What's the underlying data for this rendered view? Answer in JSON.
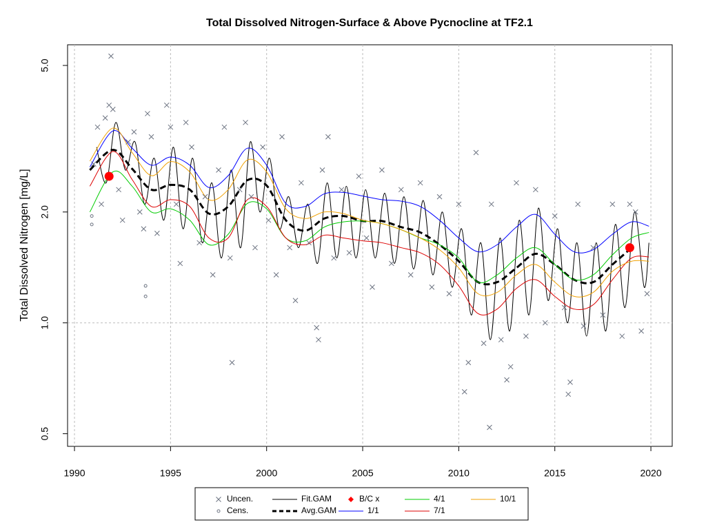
{
  "chart_data": {
    "type": "line",
    "title": "Total Dissolved Nitrogen-Surface & Above Pycnocline at TF2.1",
    "y_label": "Total Dissolved Nitrogen [mg/L]",
    "y_log": true,
    "xlim": [
      1989.64,
      2021.11
    ],
    "ylim": [
      0.462,
      5.69
    ],
    "xticks": [
      1990,
      1995,
      2000,
      2005,
      2010,
      2015,
      2020
    ],
    "yticks": [
      0.5,
      {
        "value": 1,
        "label": "1.0"
      },
      {
        "value": 2,
        "label": "2.0"
      },
      {
        "value": 5,
        "label": "5.0"
      }
    ],
    "grid_x": true,
    "ref_lines": [
      1
    ],
    "legend_position": "bottom",
    "series": [
      {
        "name": "Uncen.",
        "kind": "points",
        "marker": "x",
        "color": "#6b7280",
        "x": [
          1991.0,
          1991.2,
          1991.4,
          1991.6,
          1991.8,
          1991.9,
          1992.0,
          1992.3,
          1992.5,
          1992.8,
          1993.1,
          1993.4,
          1993.6,
          1993.8,
          1994.0,
          1994.3,
          1994.8,
          1995.0,
          1995.3,
          1995.5,
          1995.8,
          1996.1,
          1996.5,
          1996.8,
          1997.2,
          1997.5,
          1997.8,
          1998.1,
          1998.2,
          1998.6,
          1998.9,
          1999.2,
          1999.4,
          1999.8,
          2000.1,
          2000.5,
          2000.8,
          2001.2,
          2001.5,
          2001.8,
          2002.2,
          2002.6,
          2002.7,
          2002.9,
          2003.2,
          2003.5,
          2003.9,
          2004.3,
          2004.8,
          2005.2,
          2005.5,
          2006.0,
          2006.5,
          2007.0,
          2007.5,
          2008.0,
          2008.6,
          2009.0,
          2009.5,
          2010.0,
          2010.3,
          2010.5,
          2010.9,
          2011.3,
          2011.6,
          2011.7,
          2012.2,
          2012.5,
          2012.7,
          2013.0,
          2013.5,
          2014.0,
          2014.5,
          2015.0,
          2015.5,
          2015.7,
          2015.8,
          2016.2,
          2016.5,
          2017.0,
          2017.5,
          2018.0,
          2018.5,
          2018.9,
          2019.2,
          2019.5,
          2019.8
        ],
        "values": [
          2.7,
          3.4,
          2.1,
          3.6,
          3.9,
          5.3,
          3.8,
          2.3,
          1.9,
          3.1,
          3.3,
          2.0,
          1.8,
          3.7,
          3.2,
          1.75,
          3.9,
          3.4,
          2.1,
          1.45,
          3.5,
          3.0,
          1.65,
          2.2,
          1.35,
          2.6,
          3.4,
          1.5,
          0.78,
          2.3,
          3.5,
          2.2,
          1.6,
          3.0,
          1.9,
          1.35,
          3.2,
          1.6,
          1.15,
          2.4,
          1.65,
          0.97,
          0.9,
          2.6,
          3.2,
          1.5,
          2.3,
          1.55,
          2.5,
          1.7,
          1.25,
          2.6,
          1.45,
          2.3,
          1.35,
          2.4,
          1.25,
          2.2,
          1.2,
          2.1,
          0.65,
          0.78,
          2.9,
          0.88,
          0.52,
          2.1,
          0.9,
          0.7,
          0.76,
          2.4,
          0.92,
          2.3,
          1.0,
          1.95,
          1.1,
          0.64,
          0.69,
          2.1,
          0.98,
          1.6,
          1.05,
          2.1,
          0.92,
          2.1,
          2.0,
          0.95,
          1.2
        ]
      },
      {
        "name": "Cens.",
        "kind": "points",
        "marker": "o",
        "color": "#6b7280",
        "x": [
          1990.9,
          1990.9,
          1993.7,
          1993.7
        ],
        "values": [
          1.95,
          1.85,
          1.26,
          1.18
        ]
      },
      {
        "name": "Fit.GAM",
        "kind": "line",
        "color": "#000000",
        "width": 1,
        "x": [
          1991.15,
          1991.65,
          1992.15,
          1992.65,
          1993.15,
          1993.65,
          1994.15,
          1994.65,
          1995.15,
          1995.65,
          1996.15,
          1996.65,
          1997.15,
          1997.65,
          1998.15,
          1998.65,
          1999.15,
          1999.65,
          2000.15,
          2000.65,
          2001.15,
          2001.65,
          2002.15,
          2002.65,
          2003.15,
          2003.65,
          2004.15,
          2004.65,
          2005.15,
          2005.65,
          2006.15,
          2006.65,
          2007.15,
          2007.65,
          2008.15,
          2008.65,
          2009.15,
          2009.65,
          2010.15,
          2010.65,
          2011.15,
          2011.65,
          2012.15,
          2012.65,
          2013.15,
          2013.65,
          2014.15,
          2014.65,
          2015.15,
          2015.65,
          2016.15,
          2016.65,
          2017.15,
          2017.65,
          2018.15,
          2018.65,
          2019.15,
          2019.65,
          2019.9
        ],
        "values": [
          3.0,
          2.4,
          3.5,
          2.6,
          3.1,
          2.1,
          2.8,
          1.9,
          3.0,
          1.8,
          2.8,
          1.65,
          2.4,
          1.5,
          2.6,
          1.6,
          3.1,
          2.0,
          2.8,
          1.8,
          2.2,
          1.6,
          2.1,
          1.45,
          2.4,
          1.5,
          2.35,
          1.5,
          2.3,
          1.5,
          2.25,
          1.45,
          2.2,
          1.4,
          2.15,
          1.35,
          2.0,
          1.25,
          1.8,
          1.05,
          1.65,
          0.9,
          1.7,
          0.95,
          1.9,
          1.05,
          2.05,
          1.15,
          1.8,
          1.0,
          1.65,
          0.92,
          1.65,
          0.95,
          1.85,
          1.1,
          2.0,
          1.25,
          1.65
        ]
      },
      {
        "name": "Avg.GAM",
        "kind": "line",
        "dashed": true,
        "color": "#000000",
        "width": 3,
        "x": [
          1990.8,
          1992,
          1993,
          1994,
          1995,
          1996,
          1997,
          1998,
          1999,
          2000,
          2001,
          2002,
          2003,
          2004,
          2005,
          2006,
          2007,
          2008,
          2009,
          2010,
          2011,
          2012,
          2013,
          2014,
          2015,
          2016,
          2017,
          2018,
          2019,
          2019.9
        ],
        "values": [
          2.6,
          2.95,
          2.62,
          2.3,
          2.37,
          2.3,
          1.98,
          2.07,
          2.44,
          2.36,
          1.9,
          1.78,
          1.92,
          1.95,
          1.89,
          1.89,
          1.82,
          1.76,
          1.63,
          1.47,
          1.29,
          1.29,
          1.41,
          1.54,
          1.44,
          1.31,
          1.29,
          1.44,
          1.6,
          null
        ]
      },
      {
        "name": "B/C x",
        "kind": "points",
        "marker": "dot",
        "color": "#ff0000",
        "x": [
          1991.8,
          2018.9
        ],
        "values": [
          2.5,
          1.6
        ]
      },
      {
        "name": "1/1",
        "kind": "line",
        "color": "#0000ff",
        "width": 1,
        "x": [
          1990.8,
          1992,
          1993,
          1994,
          1995,
          1996,
          1997,
          1998,
          1999,
          2000,
          2001,
          2002,
          2003,
          2004,
          2005,
          2006,
          2007,
          2008,
          2009,
          2010,
          2011,
          2012,
          2013,
          2014,
          2015,
          2016,
          2017,
          2018,
          2019,
          2019.9
        ],
        "values": [
          2.65,
          3.32,
          2.98,
          2.68,
          2.82,
          2.68,
          2.33,
          2.51,
          2.98,
          2.68,
          2.11,
          2.07,
          2.24,
          2.26,
          2.21,
          2.16,
          2.14,
          2.07,
          1.9,
          1.7,
          1.56,
          1.63,
          1.82,
          1.97,
          1.74,
          1.56,
          1.58,
          1.74,
          1.88,
          1.83
        ]
      },
      {
        "name": "4/1",
        "kind": "line",
        "color": "#00cc00",
        "width": 1,
        "x": [
          1990.8,
          1992,
          1993,
          1994,
          1995,
          1996,
          1997,
          1998,
          1999,
          2000,
          2001,
          2002,
          2003,
          2004,
          2005,
          2006,
          2007,
          2008,
          2009,
          2010,
          2011,
          2012,
          2013,
          2014,
          2015,
          2016,
          2017,
          2018,
          2019,
          2019.9
        ],
        "values": [
          2.0,
          2.57,
          2.35,
          2.0,
          2.04,
          1.9,
          1.63,
          1.74,
          2.11,
          2.04,
          1.7,
          1.67,
          1.82,
          1.88,
          1.89,
          1.86,
          1.79,
          1.7,
          1.63,
          1.5,
          1.29,
          1.35,
          1.5,
          1.6,
          1.44,
          1.31,
          1.35,
          1.53,
          1.7,
          1.76
        ]
      },
      {
        "name": "7/1",
        "kind": "line",
        "color": "#dd0000",
        "width": 1,
        "x": [
          1990.8,
          1992,
          1993,
          1994,
          1995,
          1996,
          1997,
          1998,
          1999,
          2000,
          2001,
          2002,
          2003,
          2004,
          2005,
          2006,
          2007,
          2008,
          2009,
          2010,
          2011,
          2012,
          2013,
          2014,
          2015,
          2016,
          2017,
          2018,
          2019,
          2019.9
        ],
        "values": [
          2.35,
          2.92,
          2.45,
          2.07,
          2.16,
          2.07,
          1.7,
          1.7,
          2.16,
          2.07,
          1.7,
          1.63,
          1.73,
          1.7,
          1.67,
          1.65,
          1.6,
          1.55,
          1.44,
          1.26,
          1.06,
          1.09,
          1.24,
          1.31,
          1.18,
          1.09,
          1.12,
          1.31,
          1.5,
          1.51
        ]
      },
      {
        "name": "10/1",
        "kind": "line",
        "color": "#f0a000",
        "width": 1,
        "x": [
          1990.8,
          1992,
          1993,
          1994,
          1995,
          1996,
          1997,
          1998,
          1999,
          2000,
          2001,
          2002,
          2003,
          2004,
          2005,
          2006,
          2007,
          2008,
          2009,
          2010,
          2011,
          2012,
          2013,
          2014,
          2015,
          2016,
          2017,
          2018,
          2019,
          2019.9
        ],
        "values": [
          2.75,
          3.38,
          2.9,
          2.51,
          2.74,
          2.57,
          2.16,
          2.3,
          2.77,
          2.57,
          2.04,
          1.92,
          2.0,
          1.98,
          1.9,
          1.86,
          1.79,
          1.7,
          1.58,
          1.41,
          1.2,
          1.21,
          1.35,
          1.44,
          1.29,
          1.18,
          1.21,
          1.38,
          1.47,
          1.47
        ]
      }
    ]
  }
}
